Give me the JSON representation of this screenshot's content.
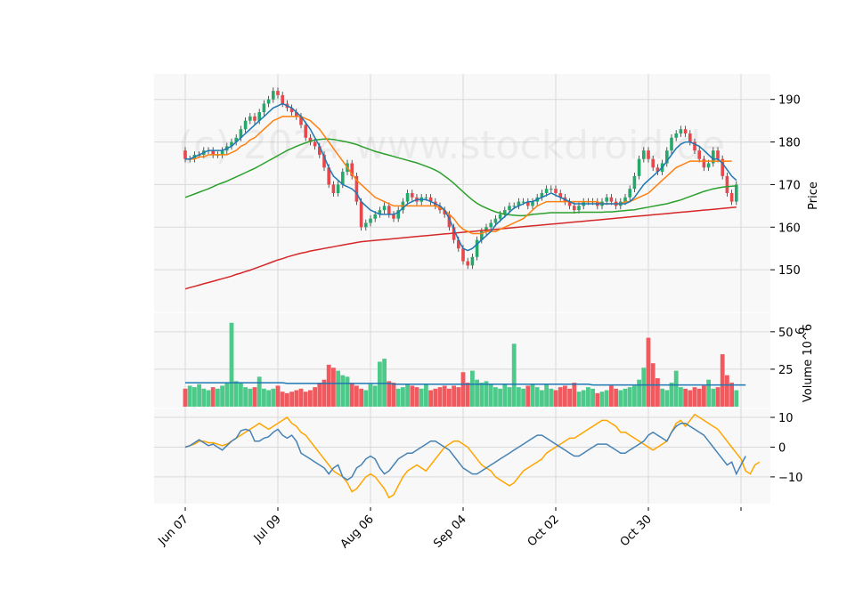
{
  "watermark": "(c) 2024 www.stockdroid.de",
  "chart_data": {
    "type": "candlestick",
    "x_tick_labels": [
      "Jun 07",
      "Jul 09",
      "Aug 06",
      "Sep 04",
      "Oct 02",
      "Oct 30",
      ""
    ],
    "x_tick_index": [
      0,
      20,
      40,
      60,
      80,
      100,
      120
    ],
    "colors": {
      "up": "#26a86a",
      "down": "#e8474b",
      "sma10": "#1f77b4",
      "sma20": "#ff7f0e",
      "sma50": "#2ca02c",
      "sma100": "#d62728",
      "vol_ma": "#1f77b4",
      "macd": "#4682b4",
      "signal": "#ffa500"
    },
    "price_panel": {
      "ylabel": "Price",
      "ylim": [
        140,
        196
      ],
      "yticks": [
        150,
        160,
        170,
        180,
        190
      ],
      "close": [
        176,
        176,
        177,
        177,
        178,
        178,
        177,
        177,
        178,
        179,
        180,
        181,
        183,
        185,
        186,
        185,
        187,
        189,
        190,
        192,
        191,
        189,
        188,
        187,
        186,
        184,
        181,
        180,
        179,
        177,
        174,
        170,
        168,
        170,
        173,
        175,
        172,
        166,
        160,
        161,
        162,
        163,
        164,
        165,
        163,
        162,
        164,
        166,
        168,
        167,
        166,
        167,
        167,
        166,
        165,
        164,
        163,
        160,
        157,
        155,
        152,
        151,
        153,
        157,
        159,
        160,
        161,
        162,
        163,
        164,
        165,
        165,
        166,
        166,
        165,
        166,
        167,
        168,
        169,
        169,
        168,
        167,
        166,
        165,
        164,
        165,
        166,
        166,
        166,
        165,
        166,
        167,
        166,
        165,
        166,
        167,
        169,
        172,
        176,
        178,
        176,
        174,
        173,
        175,
        178,
        181,
        182,
        183,
        182,
        180,
        178,
        176,
        174,
        175,
        178,
        176,
        172,
        168,
        166,
        170
      ],
      "open": [
        178,
        176,
        176,
        177,
        177,
        178,
        178,
        177,
        177,
        178,
        179,
        180,
        181,
        183,
        185,
        186,
        185,
        187,
        189,
        190,
        192,
        191,
        189,
        188,
        187,
        186,
        184,
        181,
        180,
        179,
        177,
        174,
        170,
        168,
        170,
        173,
        175,
        172,
        166,
        160,
        161,
        162,
        163,
        164,
        165,
        163,
        162,
        164,
        166,
        168,
        167,
        166,
        167,
        167,
        166,
        165,
        164,
        163,
        160,
        157,
        155,
        152,
        151,
        153,
        157,
        159,
        160,
        161,
        162,
        163,
        164,
        165,
        165,
        166,
        166,
        165,
        166,
        167,
        168,
        169,
        169,
        168,
        167,
        166,
        165,
        164,
        165,
        166,
        166,
        166,
        165,
        166,
        167,
        166,
        165,
        166,
        167,
        169,
        172,
        176,
        178,
        176,
        174,
        173,
        175,
        178,
        181,
        182,
        183,
        182,
        180,
        178,
        176,
        174,
        175,
        178,
        176,
        172,
        168,
        166
      ],
      "sma10": [
        176,
        176,
        176.5,
        177,
        177.5,
        178,
        178,
        178,
        178,
        178.5,
        179,
        180,
        181,
        182,
        183,
        184,
        185,
        186,
        187,
        188,
        188.5,
        189,
        188.5,
        188,
        187,
        186,
        184.5,
        183,
        181,
        179,
        176.5,
        174,
        172,
        171,
        170,
        169.5,
        169,
        168,
        166,
        165,
        164,
        163.5,
        163,
        163,
        163,
        163,
        163.5,
        164.5,
        165.5,
        166,
        166.5,
        166.5,
        166.5,
        166,
        165.5,
        165,
        164,
        162,
        159.5,
        157,
        155,
        154.5,
        155,
        156,
        157,
        158,
        159,
        160.5,
        161.5,
        162.5,
        163.5,
        164.5,
        165,
        165.5,
        166,
        166,
        166.5,
        167,
        167.5,
        168,
        167.5,
        167,
        166.5,
        166,
        165.5,
        165.5,
        165.5,
        165.5,
        165.5,
        165.5,
        165.5,
        165.5,
        165.5,
        165.5,
        165.5,
        165.5,
        166,
        167,
        168.5,
        170,
        171,
        172,
        173,
        174,
        175.5,
        177,
        178.5,
        179.5,
        180,
        180,
        179.5,
        179,
        178,
        177,
        176,
        176,
        175,
        173.5,
        172,
        171
      ],
      "sma20": [
        176,
        176,
        176,
        176.5,
        176.5,
        177,
        177,
        177,
        177,
        177,
        177.5,
        178,
        179,
        179.5,
        180.5,
        181,
        182,
        183,
        184,
        185,
        185.5,
        186,
        186,
        186,
        186,
        186,
        185.5,
        185,
        184,
        183,
        181.5,
        180,
        178.5,
        177,
        175.5,
        174,
        172.5,
        171,
        170,
        169,
        168,
        167,
        166.5,
        166,
        165.5,
        165,
        165,
        165,
        165,
        165,
        165,
        165,
        165,
        165,
        165,
        164.5,
        164,
        163,
        162,
        160.5,
        159.5,
        159,
        158.5,
        158.5,
        158.5,
        159,
        159,
        159,
        159.5,
        160,
        160.5,
        161,
        161.5,
        162,
        163,
        164,
        165,
        165.5,
        166,
        166,
        166,
        166,
        166,
        166,
        166,
        166,
        166,
        166,
        166,
        166,
        165.5,
        165.5,
        165.5,
        165.5,
        165.5,
        166,
        166,
        166.5,
        167,
        167.5,
        168,
        169,
        170,
        171,
        172,
        173,
        174,
        174.5,
        175,
        175.5,
        175.5,
        175.5,
        175.5,
        175.5,
        175.5,
        175.5,
        175.5,
        175.5,
        175.5
      ],
      "sma50": [
        167,
        167.4,
        167.8,
        168.2,
        168.6,
        169,
        169.5,
        170,
        170.4,
        170.8,
        171.3,
        171.8,
        172.3,
        172.8,
        173.3,
        173.8,
        174.4,
        175,
        175.6,
        176.2,
        176.8,
        177.4,
        178,
        178.5,
        179,
        179.4,
        179.8,
        180.2,
        180.5,
        180.6,
        180.7,
        180.7,
        180.6,
        180.4,
        180.2,
        180,
        179.7,
        179.4,
        179,
        178.6,
        178.2,
        177.8,
        177.5,
        177.2,
        176.9,
        176.6,
        176.3,
        176,
        175.7,
        175.4,
        175.1,
        174.7,
        174.3,
        173.9,
        173.4,
        172.8,
        172,
        171.2,
        170.3,
        169.3,
        168.3,
        167.3,
        166.4,
        165.6,
        165,
        164.5,
        164,
        163.6,
        163.3,
        163,
        162.9,
        162.8,
        162.7,
        162.7,
        162.8,
        163,
        163.1,
        163.2,
        163.3,
        163.4,
        163.4,
        163.4,
        163.4,
        163.4,
        163.4,
        163.5,
        163.5,
        163.5,
        163.5,
        163.5,
        163.5,
        163.6,
        163.6,
        163.7,
        163.8,
        163.9,
        164,
        164.1,
        164.3,
        164.5,
        164.7,
        164.9,
        165.1,
        165.3,
        165.5,
        165.8,
        166.1,
        166.4,
        166.8,
        167.2,
        167.6,
        168,
        168.4,
        168.7,
        169,
        169.2,
        169.4,
        169.5,
        169.6,
        169.7
      ],
      "sma100": [
        145.5,
        145.8,
        146.1,
        146.4,
        146.7,
        147,
        147.3,
        147.6,
        147.9,
        148.2,
        148.5,
        148.9,
        149.2,
        149.6,
        149.9,
        150.3,
        150.7,
        151.1,
        151.5,
        151.9,
        152.3,
        152.6,
        153,
        153.3,
        153.6,
        153.9,
        154.1,
        154.4,
        154.6,
        154.8,
        155,
        155.2,
        155.4,
        155.6,
        155.8,
        156,
        156.2,
        156.4,
        156.6,
        156.7,
        156.8,
        156.9,
        157,
        157.1,
        157.2,
        157.3,
        157.4,
        157.5,
        157.6,
        157.7,
        157.8,
        157.9,
        158,
        158.1,
        158.2,
        158.3,
        158.4,
        158.5,
        158.6,
        158.7,
        158.8,
        158.9,
        159,
        159.1,
        159.2,
        159.3,
        159.4,
        159.5,
        159.6,
        159.7,
        159.8,
        159.9,
        160,
        160.1,
        160.2,
        160.3,
        160.4,
        160.5,
        160.6,
        160.7,
        160.8,
        160.9,
        161,
        161.1,
        161.2,
        161.3,
        161.4,
        161.5,
        161.6,
        161.7,
        161.8,
        161.9,
        162,
        162.1,
        162.2,
        162.3,
        162.4,
        162.5,
        162.6,
        162.7,
        162.8,
        162.9,
        163,
        163.1,
        163.2,
        163.3,
        163.4,
        163.5,
        163.6,
        163.7,
        163.8,
        163.9,
        164,
        164.1,
        164.2,
        164.3,
        164.4,
        164.5,
        164.6,
        164.7
      ]
    },
    "volume_panel": {
      "ylabel": "Volume  10^6",
      "ylim": [
        0,
        60
      ],
      "yticks": [
        25,
        50
      ],
      "volume": [
        12,
        14,
        13,
        15,
        12,
        11,
        13,
        12,
        14,
        16,
        56,
        17,
        16,
        13,
        12,
        13,
        20,
        12,
        11,
        12,
        14,
        10,
        9,
        10,
        11,
        12,
        10,
        11,
        13,
        16,
        18,
        28,
        26,
        24,
        21,
        20,
        16,
        14,
        12,
        11,
        15,
        14,
        30,
        32,
        17,
        16,
        12,
        13,
        15,
        14,
        13,
        12,
        15,
        11,
        12,
        13,
        14,
        12,
        14,
        13,
        23,
        16,
        24,
        18,
        16,
        17,
        15,
        13,
        12,
        15,
        13,
        42,
        13,
        12,
        14,
        15,
        13,
        11,
        15,
        12,
        11,
        13,
        14,
        12,
        16,
        10,
        11,
        13,
        12,
        9,
        10,
        11,
        14,
        12,
        11,
        12,
        13,
        14,
        18,
        26,
        46,
        29,
        19,
        12,
        11,
        16,
        24,
        13,
        12,
        11,
        13,
        12,
        14,
        18,
        12,
        13,
        35,
        21,
        16,
        11
      ],
      "vol_ma": [
        16,
        16,
        16,
        16,
        16,
        16,
        16,
        16,
        16,
        16,
        16,
        16,
        16,
        16,
        16,
        16,
        16,
        16,
        16,
        16,
        16,
        16,
        15.5,
        15.5,
        15.5,
        15.5,
        15.5,
        15.5,
        15.5,
        15.5,
        15.5,
        15.5,
        15.5,
        15.5,
        15.5,
        15.5,
        15.5,
        15.5,
        15.5,
        15.5,
        15.5,
        15.5,
        15.5,
        15.5,
        15.5,
        15,
        15,
        15,
        15,
        15,
        15,
        15,
        15,
        15,
        15,
        15,
        15,
        15,
        15,
        15,
        15,
        15,
        15,
        15,
        15,
        15,
        15,
        15,
        15,
        15,
        15,
        15,
        15,
        15,
        15,
        15,
        15,
        15,
        15,
        15,
        15,
        15,
        15,
        15,
        15,
        15,
        15,
        15,
        14.5,
        14.5,
        14.5,
        14.5,
        14.5,
        14.5,
        14.5,
        14.5,
        14.5,
        14.5,
        14.5,
        14.5,
        14.5,
        14.5,
        14.5,
        14.5,
        14.5,
        14.5,
        14.5,
        14.5,
        14.5,
        14.5,
        14.5,
        14.5,
        14.5,
        14.5,
        14.5,
        14.5,
        14.5,
        14.5,
        14.5,
        14.5,
        14.5,
        14.5
      ]
    },
    "macd_panel": {
      "ylim": [
        -19,
        13
      ],
      "yticks": [
        -10,
        0,
        10
      ],
      "macd": [
        0,
        0.5,
        1.5,
        2.5,
        1.5,
        0.5,
        1,
        0,
        -1,
        0.5,
        2,
        3,
        5.5,
        6,
        5.5,
        2,
        2,
        3,
        3.5,
        5,
        6,
        4,
        3,
        4,
        2,
        -2,
        -3,
        -4,
        -5,
        -6,
        -7,
        -9,
        -7,
        -6,
        -10,
        -11,
        -10,
        -7,
        -6,
        -4,
        -3,
        -4,
        -7,
        -9,
        -8,
        -6,
        -4,
        -3,
        -2,
        -2,
        -1,
        0,
        1,
        2,
        2,
        1,
        0,
        -1,
        -3,
        -5,
        -7,
        -8,
        -9,
        -9,
        -8,
        -7,
        -6,
        -5,
        -4,
        -3,
        -2,
        -1,
        0,
        1,
        2,
        3,
        4,
        4,
        3,
        2,
        1,
        0,
        -1,
        -2,
        -3,
        -3,
        -2,
        -1,
        0,
        1,
        1,
        1,
        0,
        -1,
        -2,
        -2,
        -1,
        0,
        1,
        2,
        4,
        5,
        4,
        3,
        2,
        5,
        7,
        8,
        8,
        7,
        6,
        5,
        4,
        2,
        0,
        -2,
        -4,
        -6,
        -5,
        -9,
        -6,
        -3
      ],
      "signal": [
        0,
        0.5,
        1,
        2,
        2,
        1.5,
        1.5,
        1,
        0.5,
        1,
        2,
        3,
        4,
        5,
        6,
        7,
        8,
        7,
        6,
        7,
        8,
        9,
        10,
        8,
        7,
        5,
        4,
        2,
        0,
        -2,
        -4,
        -6,
        -8,
        -9,
        -10,
        -12,
        -15,
        -14,
        -12,
        -10,
        -9,
        -10,
        -12,
        -14,
        -17,
        -16,
        -13,
        -10,
        -8,
        -7,
        -6,
        -7,
        -8,
        -6,
        -4,
        -2,
        0,
        1,
        2,
        2,
        1,
        0,
        -2,
        -4,
        -6,
        -7,
        -8,
        -10,
        -11,
        -12,
        -13,
        -12,
        -10,
        -8,
        -7,
        -6,
        -5,
        -4,
        -2,
        -1,
        0,
        1,
        2,
        3,
        3,
        4,
        5,
        6,
        7,
        8,
        9,
        9,
        8,
        7,
        5,
        5,
        4,
        3,
        2,
        1,
        0,
        -1,
        0,
        1,
        2,
        5,
        8,
        9,
        7,
        9,
        11,
        10,
        9,
        8,
        7,
        6,
        4,
        2,
        0,
        -2,
        -4,
        -8,
        -9,
        -6,
        -5
      ]
    }
  }
}
